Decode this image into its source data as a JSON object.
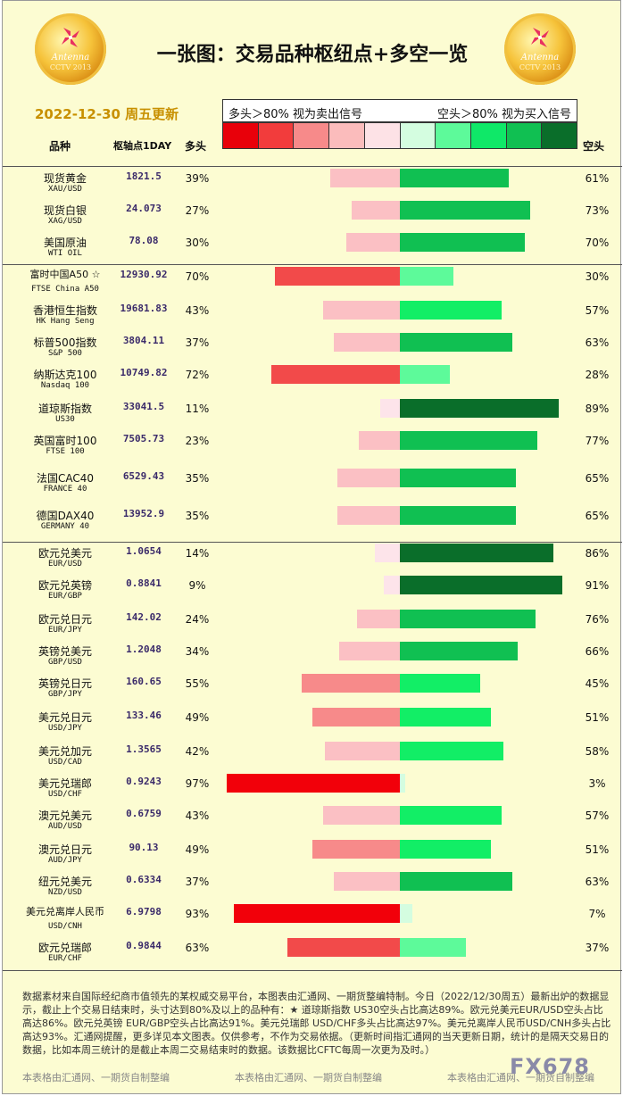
{
  "header": {
    "title": "一张图：交易品种枢纽点+多空一览",
    "update_date": "2022-12-30 周五更新",
    "legend_long": "多头＞80% 视为卖出信号",
    "legend_short": "空头＞80% 视为买入信号",
    "col_name": "品种",
    "col_pivot": "枢轴点1DAY",
    "col_long": "多头",
    "col_short": "空头",
    "color_scale": [
      "#e8000a",
      "#f23c3c",
      "#f78a8a",
      "#fbbcbc",
      "#fde2e6",
      "#d4fde0",
      "#5dfa9a",
      "#0fe868",
      "#10c052",
      "#0a6e2a"
    ],
    "logo_text": "Antenna",
    "logo_sub": "CCTV 2013"
  },
  "chart_data": {
    "type": "bar",
    "title": "一张图：交易品种枢纽点+多空一览",
    "xlabel": "",
    "ylabel": "",
    "value_range": [
      0,
      100
    ],
    "series": [
      {
        "name": "多头",
        "values": [
          39,
          27,
          30,
          70,
          43,
          37,
          72,
          11,
          23,
          35,
          35,
          14,
          9,
          24,
          34,
          55,
          49,
          42,
          97,
          43,
          49,
          37,
          93,
          63
        ]
      },
      {
        "name": "空头",
        "values": [
          61,
          73,
          70,
          30,
          57,
          63,
          28,
          89,
          77,
          65,
          65,
          86,
          91,
          76,
          66,
          45,
          51,
          58,
          3,
          57,
          51,
          63,
          7,
          37
        ]
      }
    ],
    "rows": [
      {
        "name": "现货黄金",
        "code": "XAU/USD",
        "pivot": "1821.5",
        "long": 39,
        "short": 61,
        "long_label": "39%",
        "short_label": "61%"
      },
      {
        "name": "现货白银",
        "code": "XAG/USD",
        "pivot": "24.073",
        "long": 27,
        "short": 73,
        "long_label": "27%",
        "short_label": "73%"
      },
      {
        "name": "美国原油",
        "code": "WTI OIL",
        "pivot": "78.08",
        "long": 30,
        "short": 70,
        "long_label": "30%",
        "short_label": "70%"
      },
      {
        "name": "富时中国A50 ☆",
        "code": "FTSE China A50",
        "pivot": "12930.92",
        "long": 70,
        "short": 30,
        "long_label": "70%",
        "short_label": "30%"
      },
      {
        "name": "香港恒生指数",
        "code": "HK Hang Seng",
        "pivot": "19681.83",
        "long": 43,
        "short": 57,
        "long_label": "43%",
        "short_label": "57%"
      },
      {
        "name": "标普500指数",
        "code": "S&P 500",
        "pivot": "3804.11",
        "long": 37,
        "short": 63,
        "long_label": "37%",
        "short_label": "63%"
      },
      {
        "name": "纳斯达克100",
        "code": "Nasdaq 100",
        "pivot": "10749.82",
        "long": 72,
        "short": 28,
        "long_label": "72%",
        "short_label": "28%"
      },
      {
        "name": "道琼斯指数",
        "code": "US30",
        "pivot": "33041.5",
        "long": 11,
        "short": 89,
        "long_label": "11%",
        "short_label": "89%"
      },
      {
        "name": "英国富时100",
        "code": "FTSE 100",
        "pivot": "7505.73",
        "long": 23,
        "short": 77,
        "long_label": "23%",
        "short_label": "77%"
      },
      {
        "name": "法国CAC40",
        "code": "FRANCE 40",
        "pivot": "6529.43",
        "long": 35,
        "short": 65,
        "long_label": "35%",
        "short_label": "65%"
      },
      {
        "name": "德国DAX40",
        "code": "GERMANY 40",
        "pivot": "13952.9",
        "long": 35,
        "short": 65,
        "long_label": "35%",
        "short_label": "65%"
      },
      {
        "name": "欧元兑美元",
        "code": "EUR/USD",
        "pivot": "1.0654",
        "long": 14,
        "short": 86,
        "long_label": "14%",
        "short_label": "86%"
      },
      {
        "name": "欧元兑英镑",
        "code": "EUR/GBP",
        "pivot": "0.8841",
        "long": 9,
        "short": 91,
        "long_label": "9%",
        "short_label": "91%"
      },
      {
        "name": "欧元兑日元",
        "code": "EUR/JPY",
        "pivot": "142.02",
        "long": 24,
        "short": 76,
        "long_label": "24%",
        "short_label": "76%"
      },
      {
        "name": "英镑兑美元",
        "code": "GBP/USD",
        "pivot": "1.2048",
        "long": 34,
        "short": 66,
        "long_label": "34%",
        "short_label": "66%"
      },
      {
        "name": "英镑兑日元",
        "code": "GBP/JPY",
        "pivot": "160.65",
        "long": 55,
        "short": 45,
        "long_label": "55%",
        "short_label": "45%"
      },
      {
        "name": "美元兑日元",
        "code": "USD/JPY",
        "pivot": "133.46",
        "long": 49,
        "short": 51,
        "long_label": "49%",
        "short_label": "51%"
      },
      {
        "name": "美元兑加元",
        "code": "USD/CAD",
        "pivot": "1.3565",
        "long": 42,
        "short": 58,
        "long_label": "42%",
        "short_label": "58%"
      },
      {
        "name": "美元兑瑞郎",
        "code": "USD/CHF",
        "pivot": "0.9243",
        "long": 97,
        "short": 3,
        "long_label": "97%",
        "short_label": "3%"
      },
      {
        "name": "澳元兑美元",
        "code": "AUD/USD",
        "pivot": "0.6759",
        "long": 43,
        "short": 57,
        "long_label": "43%",
        "short_label": "57%"
      },
      {
        "name": "澳元兑日元",
        "code": "AUD/JPY",
        "pivot": "90.13",
        "long": 49,
        "short": 51,
        "long_label": "49%",
        "short_label": "51%"
      },
      {
        "name": "纽元兑美元",
        "code": "NZD/USD",
        "pivot": "0.6334",
        "long": 37,
        "short": 63,
        "long_label": "37%",
        "short_label": "63%"
      },
      {
        "name": "美元兑离岸人民币",
        "code": "USD/CNH",
        "pivot": "6.9798",
        "long": 93,
        "short": 7,
        "long_label": "93%",
        "short_label": "7%"
      },
      {
        "name": "欧元兑瑞郎",
        "code": "EUR/CHF",
        "pivot": "0.9844",
        "long": 63,
        "short": 37,
        "long_label": "63%",
        "short_label": "37%"
      }
    ]
  },
  "footer": {
    "text": "数据素材来自国际经纪商市值领先的某权威交易平台，本图表由汇通网、一期货整编特制。今日（2022/12/30周五）最新出炉的数据显示，截止上个交易日结束时，头寸达到80%及以上的品种有：★ 道琼斯指数 US30空头占比高达89%。欧元兑美元EUR/USD空头占比高达86%。欧元兑英镑 EUR/GBP空头占比高达91%。美元兑瑞郎 USD/CHF多头占比高达97%。美元兑离岸人民币USD/CNH多头占比高达93%。汇通网提醒，更多详见本文图表。仅供参考，不作为交易依据。（更新时间指汇通网的当天更新日期，统计的是隔天交易日的数据，比如本周三统计的是截止本周二交易结束时的数据。该数据比CFTC每周一次更为及时。）",
    "credit": "本表格由汇通网、一期货自制整编",
    "watermark": "FX678"
  }
}
